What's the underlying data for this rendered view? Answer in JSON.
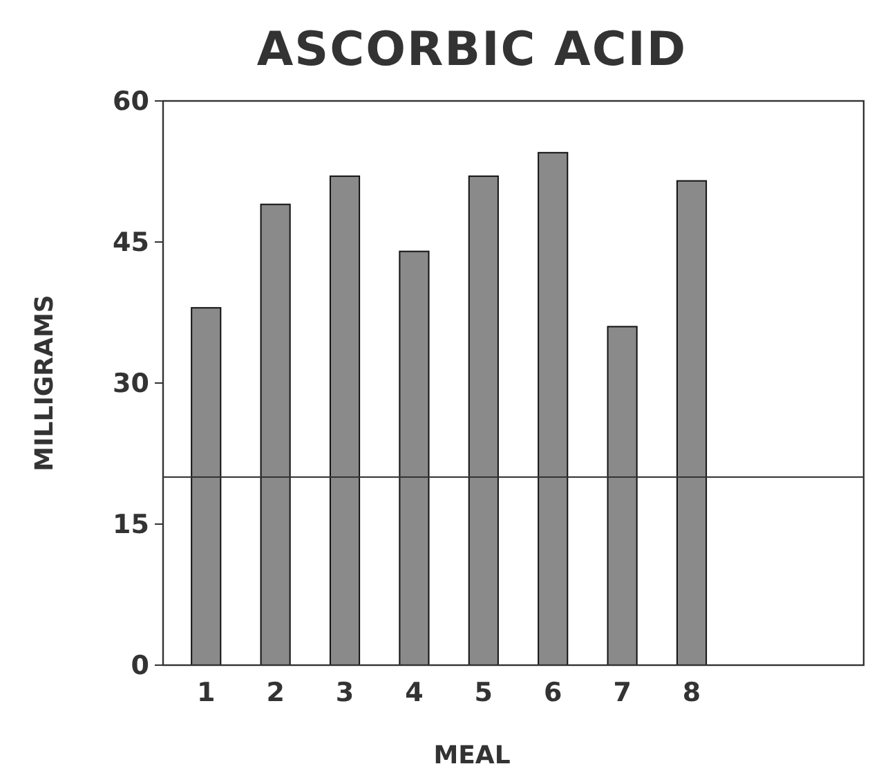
{
  "chart_data": {
    "type": "bar",
    "title": "ASCORBIC ACID",
    "xlabel": "MEAL",
    "ylabel": "MILLIGRAMS",
    "categories": [
      "1",
      "2",
      "3",
      "4",
      "5",
      "6",
      "7",
      "8"
    ],
    "values": [
      38,
      49,
      52,
      44,
      52,
      54.5,
      36,
      51.5
    ],
    "color": "#8a8a8a",
    "ylim": [
      0,
      60
    ],
    "yticks": [
      0,
      15,
      30,
      45,
      60
    ],
    "grid": false,
    "ref_lines": [
      {
        "axis": "y",
        "value": 20
      }
    ]
  }
}
